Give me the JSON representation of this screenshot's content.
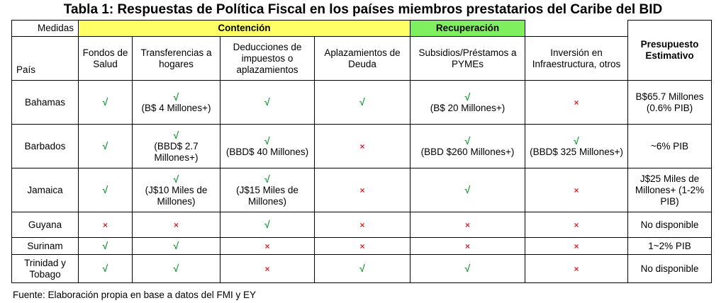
{
  "title": "Tabla 1: Respuestas de Política Fiscal en los países miembros prestatarios del Caribe del BID",
  "header": {
    "medidas": "Medidas",
    "pais": "País",
    "contencion": "Contención",
    "recuperacion": "Recuperación",
    "presupuesto": "Presupuesto Estimativo",
    "columns": [
      "Fondos de Salud",
      "Transferencias a hogares",
      "Deducciones de impuestos o aplazamientos",
      "Aplazamientos de Deuda",
      "Subsidios/Préstamos a PYMEs",
      "Inversión en Infraestructura, otros"
    ]
  },
  "symbols": {
    "check": "√",
    "cross": "×"
  },
  "rows": [
    {
      "country": "Bahamas",
      "cells": [
        {
          "mark": "check"
        },
        {
          "mark": "check",
          "note": "(B$ 4 Millones+)"
        },
        {
          "mark": "check"
        },
        {
          "mark": "check"
        },
        {
          "mark": "check",
          "note": "(B$ 20 Millones+)"
        },
        {
          "mark": "cross"
        }
      ],
      "budget": "B$65.7 Millones (0.6% PIB)"
    },
    {
      "country": "Barbados",
      "cells": [
        {
          "mark": "check"
        },
        {
          "mark": "check",
          "note": "(BBD$ 2.7 Millones+)"
        },
        {
          "mark": "check",
          "note": "(BBD$ 40 Millones)"
        },
        {
          "mark": "cross"
        },
        {
          "mark": "check",
          "note": "(BBD $260 Millones+)"
        },
        {
          "mark": "check",
          "note": "(BBD$ 325 Millones+)"
        }
      ],
      "budget": "~6% PIB"
    },
    {
      "country": "Jamaica",
      "cells": [
        {
          "mark": "check"
        },
        {
          "mark": "check",
          "note": "(J$10 Miles de Millones)"
        },
        {
          "mark": "check",
          "note": "(J$15 Miles de Millones)"
        },
        {
          "mark": "cross"
        },
        {
          "mark": "check"
        },
        {
          "mark": "cross"
        }
      ],
      "budget": "J$25 Miles de Millones+ (1-2% PIB)"
    },
    {
      "country": "Guyana",
      "cells": [
        {
          "mark": "cross"
        },
        {
          "mark": "cross"
        },
        {
          "mark": "check"
        },
        {
          "mark": "cross"
        },
        {
          "mark": "cross"
        },
        {
          "mark": "cross"
        }
      ],
      "budget": "No disponible"
    },
    {
      "country": "Surinam",
      "cells": [
        {
          "mark": "check"
        },
        {
          "mark": "check"
        },
        {
          "mark": "cross"
        },
        {
          "mark": "cross"
        },
        {
          "mark": "cross"
        },
        {
          "mark": "cross"
        }
      ],
      "budget": "1~2% PIB"
    },
    {
      "country": "Trinidad y Tobago",
      "cells": [
        {
          "mark": "check"
        },
        {
          "mark": "check"
        },
        {
          "mark": "cross"
        },
        {
          "mark": "check"
        },
        {
          "mark": "check"
        },
        {
          "mark": "cross"
        }
      ],
      "budget": "No disponible"
    }
  ],
  "source": "Fuente: Elaboración propia en base a datos del FMI y EY"
}
